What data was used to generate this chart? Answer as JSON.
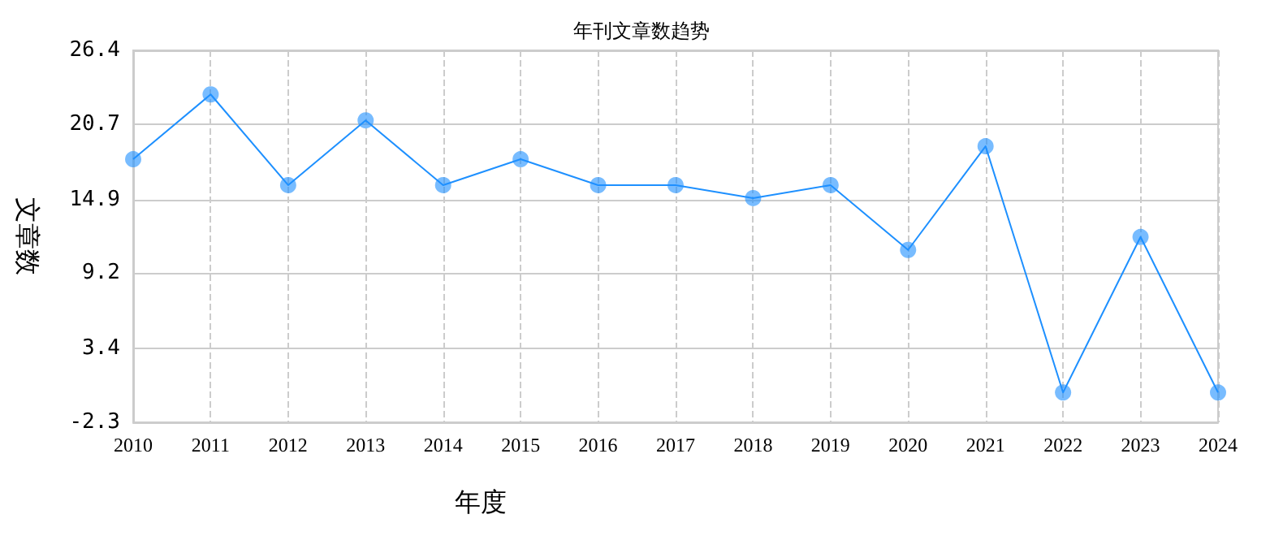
{
  "chart_data": {
    "type": "line",
    "title": "年刊文章数趋势",
    "xlabel": "年度",
    "ylabel": "文章数",
    "categories": [
      "2010",
      "2011",
      "2012",
      "2013",
      "2014",
      "2015",
      "2016",
      "2017",
      "2018",
      "2019",
      "2020",
      "2021",
      "2022",
      "2023",
      "2024"
    ],
    "series": [
      {
        "color": "#1e90ff",
        "values": [
          18,
          23,
          16,
          21,
          16,
          18,
          16,
          16,
          15,
          16,
          11,
          19,
          0,
          12,
          0
        ]
      }
    ],
    "ylim": [
      -2.3,
      26.4
    ],
    "yticks": [
      -2.3,
      3.4,
      9.2,
      14.9,
      20.7,
      26.4
    ],
    "grid": true,
    "marker": "circle",
    "line_style": "solid"
  }
}
